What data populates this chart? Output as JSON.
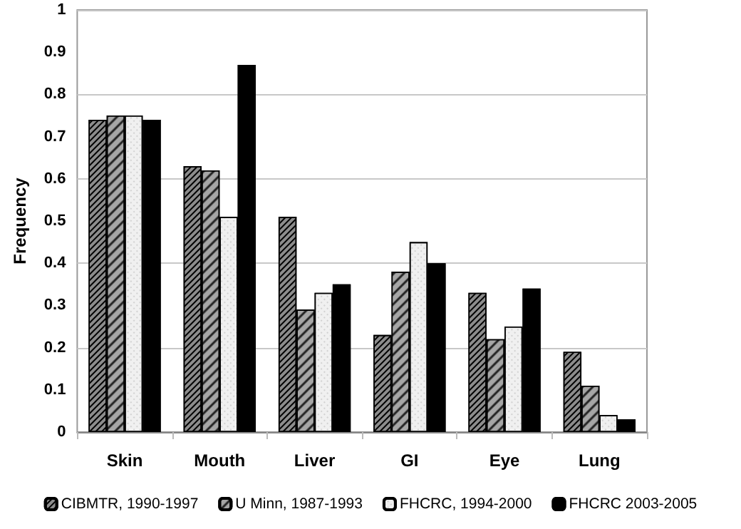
{
  "chart_data": {
    "type": "bar",
    "ylabel": "Frequency",
    "categories": [
      "Skin",
      "Mouth",
      "Liver",
      "GI",
      "Eye",
      "Lung"
    ],
    "series": [
      {
        "name": "CIBMTR, 1990-1997",
        "color": "#8c8c8c",
        "values": [
          0.74,
          0.63,
          0.51,
          0.23,
          0.33,
          0.19
        ]
      },
      {
        "name": "U Minn, 1987-1993",
        "color": "#a6a6a6",
        "values": [
          0.75,
          0.62,
          0.29,
          0.38,
          0.22,
          0.11
        ]
      },
      {
        "name": "FHCRC, 1994-2000",
        "color": "#f0f0f0",
        "values": [
          0.75,
          0.51,
          0.33,
          0.45,
          0.25,
          0.04
        ]
      },
      {
        "name": "FHCRC 2003-2005",
        "color": "#000000",
        "values": [
          0.74,
          0.87,
          0.35,
          0.4,
          0.34,
          0.03
        ]
      }
    ],
    "ylim": [
      0,
      1
    ],
    "yticks": [
      0,
      0.1,
      0.2,
      0.3,
      0.4,
      0.5,
      0.6,
      0.7,
      0.8,
      0.9,
      1
    ],
    "grid": "y",
    "legend": "bottom"
  }
}
